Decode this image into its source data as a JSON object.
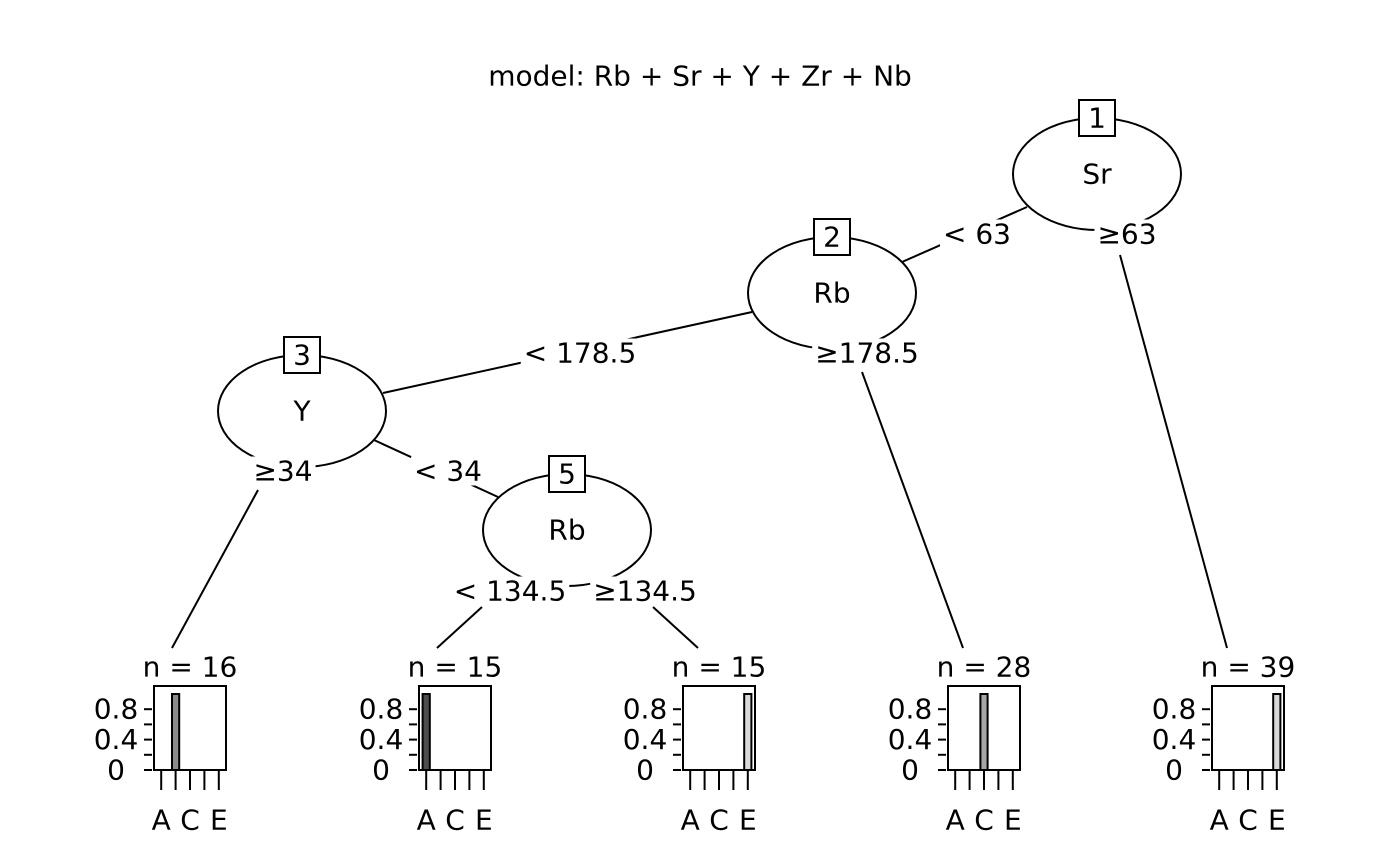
{
  "title": "model: Rb + Sr + Y + Zr + Nb",
  "inner_nodes": [
    {
      "id": "1",
      "variable": "Sr"
    },
    {
      "id": "2",
      "variable": "Rb"
    },
    {
      "id": "3",
      "variable": "Y"
    },
    {
      "id": "5",
      "variable": "Rb"
    }
  ],
  "edges": [
    {
      "from": "1",
      "to": "2",
      "label": "< 63"
    },
    {
      "from": "1",
      "to": "leaf9",
      "label": "≥63"
    },
    {
      "from": "2",
      "to": "3",
      "label": "< 178.5"
    },
    {
      "from": "2",
      "to": "leaf8",
      "label": "≥178.5"
    },
    {
      "from": "3",
      "to": "leaf4",
      "label": "≥34"
    },
    {
      "from": "3",
      "to": "5",
      "label": "< 34"
    },
    {
      "from": "5",
      "to": "leaf6",
      "label": "< 134.5"
    },
    {
      "from": "5",
      "to": "leaf7",
      "label": "≥134.5"
    }
  ],
  "leaves": [
    {
      "id": "leaf4",
      "n_label": "n = 16",
      "n": 16,
      "class_index": 1,
      "value": 1.0,
      "fill": "#8c8c8c"
    },
    {
      "id": "leaf6",
      "n_label": "n = 15",
      "n": 15,
      "class_index": 0,
      "value": 1.0,
      "fill": "#4d4d4d"
    },
    {
      "id": "leaf7",
      "n_label": "n = 15",
      "n": 15,
      "class_index": 4,
      "value": 1.0,
      "fill": "#d9d9d9"
    },
    {
      "id": "leaf8",
      "n_label": "n = 28",
      "n": 28,
      "class_index": 2,
      "value": 1.0,
      "fill": "#a6a6a6"
    },
    {
      "id": "leaf9",
      "n_label": "n = 39",
      "n": 39,
      "class_index": 4,
      "value": 1.0,
      "fill": "#d9d9d9"
    }
  ],
  "leaf_axis": {
    "y_ticks": [
      "0",
      "0.4",
      "0.8"
    ],
    "x_tick_labels": [
      "A",
      "C",
      "E"
    ],
    "class_count": 5
  }
}
